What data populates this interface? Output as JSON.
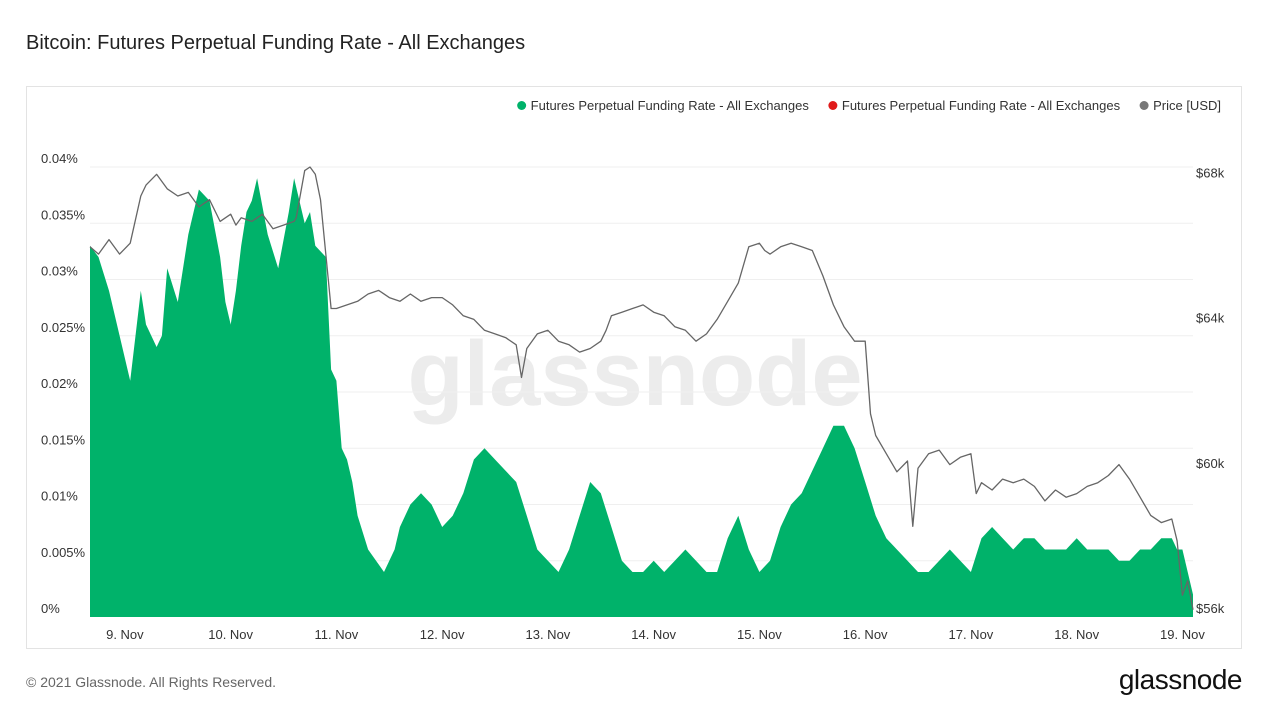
{
  "page": {
    "title": "Bitcoin: Futures Perpetual Funding Rate - All Exchanges",
    "copyright": "© 2021 Glassnode. All Rights Reserved.",
    "logo": "glassnode",
    "watermark": "glassnode"
  },
  "chart_data": {
    "type": "area",
    "title": "Bitcoin: Futures Perpetual Funding Rate - All Exchanges",
    "legend_position": "top-right",
    "legend": [
      {
        "label": "Futures Perpetual Funding Rate - All Exchanges",
        "color": "#00b26a"
      },
      {
        "label": "Futures Perpetual Funding Rate - All Exchanges",
        "color": "#e01b1b"
      },
      {
        "label": "Price [USD]",
        "color": "#777777"
      }
    ],
    "x_ticks": [
      "9. Nov",
      "10. Nov",
      "11. Nov",
      "12. Nov",
      "13. Nov",
      "14. Nov",
      "15. Nov",
      "16. Nov",
      "17. Nov",
      "18. Nov",
      "19. Nov"
    ],
    "x_tick_days": [
      9,
      10,
      11,
      12,
      13,
      14,
      15,
      16,
      17,
      18,
      19
    ],
    "x_range": [
      8.67,
      19.1
    ],
    "y_left": {
      "range": [
        0,
        0.04
      ],
      "ticks": [
        0,
        0.005,
        0.01,
        0.015,
        0.02,
        0.025,
        0.03,
        0.035,
        0.04
      ],
      "tick_labels": [
        "0%",
        "0.005%",
        "0.01%",
        "0.015%",
        "0.02%",
        "0.025%",
        "0.03%",
        "0.035%",
        "0.04%"
      ]
    },
    "y_right": {
      "range": [
        56000,
        68400
      ],
      "ticks": [
        56000,
        60000,
        64000,
        68000
      ],
      "tick_labels": [
        "$56k",
        "$60k",
        "$64k",
        "$68k"
      ]
    },
    "grid": true,
    "series": [
      {
        "name": "Futures Perpetual Funding Rate - All Exchanges",
        "axis": "left",
        "style": "area",
        "color": "#00b26a",
        "x": [
          8.67,
          8.75,
          8.85,
          8.95,
          9.05,
          9.15,
          9.2,
          9.3,
          9.35,
          9.4,
          9.5,
          9.6,
          9.7,
          9.8,
          9.9,
          9.95,
          10.0,
          10.05,
          10.1,
          10.15,
          10.2,
          10.25,
          10.35,
          10.45,
          10.55,
          10.6,
          10.65,
          10.7,
          10.75,
          10.8,
          10.9,
          10.95,
          11.0,
          11.05,
          11.1,
          11.15,
          11.2,
          11.3,
          11.45,
          11.5,
          11.55,
          11.6,
          11.7,
          11.8,
          11.9,
          12.0,
          12.1,
          12.2,
          12.3,
          12.4,
          12.5,
          12.6,
          12.7,
          12.8,
          12.9,
          13.0,
          13.1,
          13.2,
          13.3,
          13.4,
          13.5,
          13.6,
          13.7,
          13.8,
          13.9,
          14.0,
          14.1,
          14.2,
          14.3,
          14.4,
          14.5,
          14.6,
          14.7,
          14.8,
          14.9,
          15.0,
          15.1,
          15.2,
          15.3,
          15.4,
          15.5,
          15.6,
          15.7,
          15.8,
          15.9,
          16.0,
          16.1,
          16.2,
          16.3,
          16.4,
          16.5,
          16.6,
          16.7,
          16.8,
          16.9,
          17.0,
          17.1,
          17.2,
          17.3,
          17.4,
          17.5,
          17.6,
          17.7,
          17.8,
          17.9,
          18.0,
          18.1,
          18.2,
          18.3,
          18.4,
          18.5,
          18.6,
          18.7,
          18.8,
          18.9,
          18.95,
          19.0,
          19.05,
          19.1
        ],
        "y": [
          0.033,
          0.032,
          0.029,
          0.025,
          0.021,
          0.029,
          0.026,
          0.024,
          0.025,
          0.031,
          0.028,
          0.034,
          0.038,
          0.037,
          0.032,
          0.028,
          0.026,
          0.029,
          0.033,
          0.036,
          0.037,
          0.039,
          0.034,
          0.031,
          0.036,
          0.039,
          0.037,
          0.035,
          0.036,
          0.033,
          0.032,
          0.022,
          0.021,
          0.015,
          0.014,
          0.012,
          0.009,
          0.006,
          0.004,
          0.005,
          0.006,
          0.008,
          0.01,
          0.011,
          0.01,
          0.008,
          0.009,
          0.011,
          0.014,
          0.015,
          0.014,
          0.013,
          0.012,
          0.009,
          0.006,
          0.005,
          0.004,
          0.006,
          0.009,
          0.012,
          0.011,
          0.008,
          0.005,
          0.004,
          0.004,
          0.005,
          0.004,
          0.005,
          0.006,
          0.005,
          0.004,
          0.004,
          0.007,
          0.009,
          0.006,
          0.004,
          0.005,
          0.008,
          0.01,
          0.011,
          0.013,
          0.015,
          0.017,
          0.017,
          0.015,
          0.012,
          0.009,
          0.007,
          0.006,
          0.005,
          0.004,
          0.004,
          0.005,
          0.006,
          0.005,
          0.004,
          0.007,
          0.008,
          0.007,
          0.006,
          0.007,
          0.007,
          0.006,
          0.006,
          0.006,
          0.007,
          0.006,
          0.006,
          0.006,
          0.005,
          0.005,
          0.006,
          0.006,
          0.007,
          0.007,
          0.006,
          0.006,
          0.004,
          0.002
        ]
      },
      {
        "name": "Price [USD]",
        "axis": "right",
        "style": "line",
        "color": "#666666",
        "x": [
          8.67,
          8.75,
          8.85,
          8.95,
          9.05,
          9.15,
          9.2,
          9.3,
          9.4,
          9.5,
          9.6,
          9.7,
          9.8,
          9.9,
          10.0,
          10.05,
          10.1,
          10.2,
          10.3,
          10.4,
          10.5,
          10.6,
          10.62,
          10.7,
          10.75,
          10.8,
          10.85,
          10.9,
          10.95,
          11.0,
          11.1,
          11.2,
          11.3,
          11.4,
          11.5,
          11.6,
          11.7,
          11.8,
          11.9,
          12.0,
          12.1,
          12.2,
          12.3,
          12.4,
          12.5,
          12.6,
          12.7,
          12.75,
          12.8,
          12.9,
          13.0,
          13.1,
          13.2,
          13.3,
          13.4,
          13.5,
          13.55,
          13.6,
          13.7,
          13.8,
          13.9,
          14.0,
          14.1,
          14.2,
          14.3,
          14.4,
          14.5,
          14.6,
          14.7,
          14.8,
          14.9,
          15.0,
          15.05,
          15.1,
          15.2,
          15.3,
          15.4,
          15.5,
          15.6,
          15.7,
          15.8,
          15.9,
          16.0,
          16.05,
          16.1,
          16.2,
          16.3,
          16.4,
          16.45,
          16.5,
          16.6,
          16.7,
          16.8,
          16.9,
          17.0,
          17.05,
          17.1,
          17.2,
          17.3,
          17.4,
          17.5,
          17.6,
          17.7,
          17.8,
          17.9,
          18.0,
          18.1,
          18.2,
          18.3,
          18.4,
          18.5,
          18.6,
          18.7,
          18.8,
          18.9,
          18.95,
          19.0,
          19.05,
          19.1
        ],
        "y": [
          66200,
          66000,
          66400,
          66000,
          66300,
          67600,
          67900,
          68200,
          67800,
          67600,
          67700,
          67300,
          67500,
          66900,
          67100,
          66800,
          67000,
          66900,
          67100,
          66700,
          66800,
          66900,
          67000,
          68300,
          68400,
          68200,
          67500,
          66000,
          64500,
          64500,
          64600,
          64700,
          64900,
          65000,
          64800,
          64700,
          64900,
          64700,
          64800,
          64800,
          64600,
          64300,
          64200,
          63900,
          63800,
          63700,
          63500,
          62600,
          63400,
          63800,
          63900,
          63600,
          63500,
          63300,
          63400,
          63600,
          63900,
          64300,
          64400,
          64500,
          64600,
          64400,
          64300,
          64000,
          63900,
          63600,
          63800,
          64200,
          64700,
          65200,
          66200,
          66300,
          66100,
          66000,
          66200,
          66300,
          66200,
          66100,
          65400,
          64600,
          64000,
          63600,
          63600,
          61600,
          61000,
          60500,
          60000,
          60300,
          58500,
          60100,
          60500,
          60600,
          60200,
          60400,
          60500,
          59400,
          59700,
          59500,
          59800,
          59700,
          59800,
          59600,
          59200,
          59500,
          59300,
          59400,
          59600,
          59700,
          59900,
          60200,
          59800,
          59300,
          58800,
          58600,
          58700,
          58100,
          56600,
          57000,
          56200
        ]
      }
    ]
  }
}
